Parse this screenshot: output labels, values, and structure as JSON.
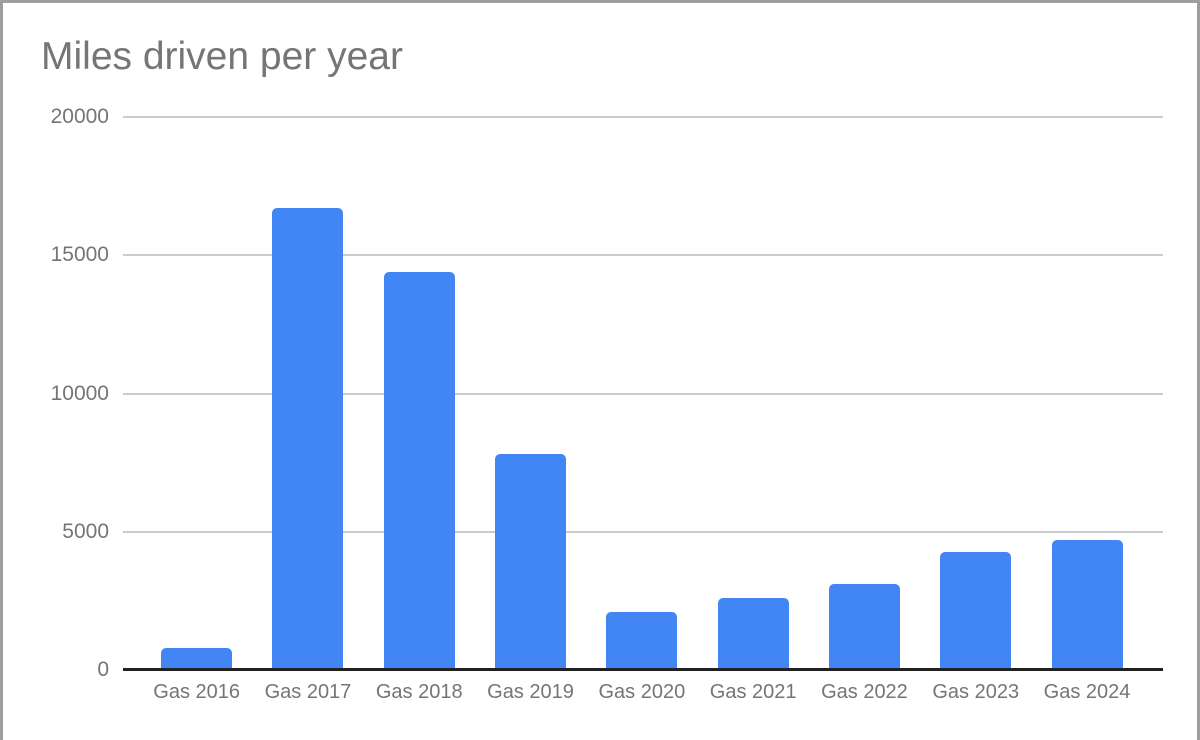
{
  "frame": {
    "border_color": "#9e9e9e",
    "background": "#ffffff"
  },
  "chart_data": {
    "type": "bar",
    "title": "Miles driven per year",
    "categories": [
      "Gas 2016",
      "Gas 2017",
      "Gas 2018",
      "Gas 2019",
      "Gas 2020",
      "Gas 2021",
      "Gas 2022",
      "Gas 2023",
      "Gas 2024"
    ],
    "values": [
      800,
      16700,
      14400,
      7800,
      2100,
      2600,
      3100,
      4250,
      4700
    ],
    "xlabel": "",
    "ylabel": "",
    "ylim": [
      0,
      20000
    ],
    "yticks": [
      0,
      5000,
      10000,
      15000,
      20000
    ],
    "ytick_labels": [
      "0",
      "5000",
      "10000",
      "15000",
      "20000"
    ],
    "grid": true,
    "legend": "none",
    "bar_color": "#4285f4",
    "gridline_color": "#cccccc",
    "axis_color": "#212121",
    "label_color": "#757575",
    "title_color": "#757575"
  }
}
